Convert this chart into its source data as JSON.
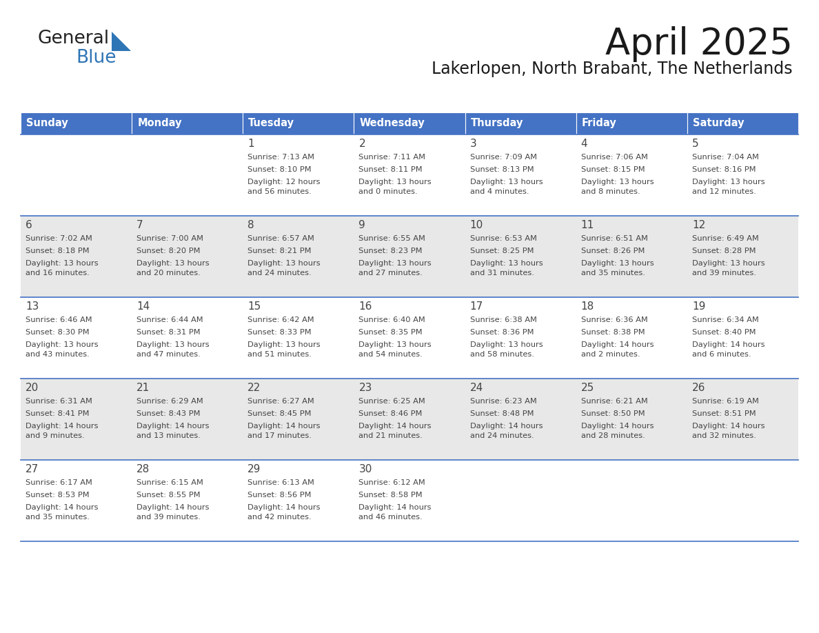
{
  "title": "April 2025",
  "subtitle": "Lakerlopen, North Brabant, The Netherlands",
  "header_color": "#4472C4",
  "header_text_color": "#FFFFFF",
  "bg_color": "#FFFFFF",
  "even_row_color": "#FFFFFF",
  "odd_row_color": "#E8E8E8",
  "border_color": "#4472C4",
  "text_color": "#444444",
  "logo_black": "#222222",
  "logo_blue": "#2E75B6",
  "day_headers": [
    "Sunday",
    "Monday",
    "Tuesday",
    "Wednesday",
    "Thursday",
    "Friday",
    "Saturday"
  ],
  "weeks": [
    [
      {
        "day": "",
        "sunrise": "",
        "sunset": "",
        "daylight": ""
      },
      {
        "day": "",
        "sunrise": "",
        "sunset": "",
        "daylight": ""
      },
      {
        "day": "1",
        "sunrise": "Sunrise: 7:13 AM",
        "sunset": "Sunset: 8:10 PM",
        "daylight": "Daylight: 12 hours\nand 56 minutes."
      },
      {
        "day": "2",
        "sunrise": "Sunrise: 7:11 AM",
        "sunset": "Sunset: 8:11 PM",
        "daylight": "Daylight: 13 hours\nand 0 minutes."
      },
      {
        "day": "3",
        "sunrise": "Sunrise: 7:09 AM",
        "sunset": "Sunset: 8:13 PM",
        "daylight": "Daylight: 13 hours\nand 4 minutes."
      },
      {
        "day": "4",
        "sunrise": "Sunrise: 7:06 AM",
        "sunset": "Sunset: 8:15 PM",
        "daylight": "Daylight: 13 hours\nand 8 minutes."
      },
      {
        "day": "5",
        "sunrise": "Sunrise: 7:04 AM",
        "sunset": "Sunset: 8:16 PM",
        "daylight": "Daylight: 13 hours\nand 12 minutes."
      }
    ],
    [
      {
        "day": "6",
        "sunrise": "Sunrise: 7:02 AM",
        "sunset": "Sunset: 8:18 PM",
        "daylight": "Daylight: 13 hours\nand 16 minutes."
      },
      {
        "day": "7",
        "sunrise": "Sunrise: 7:00 AM",
        "sunset": "Sunset: 8:20 PM",
        "daylight": "Daylight: 13 hours\nand 20 minutes."
      },
      {
        "day": "8",
        "sunrise": "Sunrise: 6:57 AM",
        "sunset": "Sunset: 8:21 PM",
        "daylight": "Daylight: 13 hours\nand 24 minutes."
      },
      {
        "day": "9",
        "sunrise": "Sunrise: 6:55 AM",
        "sunset": "Sunset: 8:23 PM",
        "daylight": "Daylight: 13 hours\nand 27 minutes."
      },
      {
        "day": "10",
        "sunrise": "Sunrise: 6:53 AM",
        "sunset": "Sunset: 8:25 PM",
        "daylight": "Daylight: 13 hours\nand 31 minutes."
      },
      {
        "day": "11",
        "sunrise": "Sunrise: 6:51 AM",
        "sunset": "Sunset: 8:26 PM",
        "daylight": "Daylight: 13 hours\nand 35 minutes."
      },
      {
        "day": "12",
        "sunrise": "Sunrise: 6:49 AM",
        "sunset": "Sunset: 8:28 PM",
        "daylight": "Daylight: 13 hours\nand 39 minutes."
      }
    ],
    [
      {
        "day": "13",
        "sunrise": "Sunrise: 6:46 AM",
        "sunset": "Sunset: 8:30 PM",
        "daylight": "Daylight: 13 hours\nand 43 minutes."
      },
      {
        "day": "14",
        "sunrise": "Sunrise: 6:44 AM",
        "sunset": "Sunset: 8:31 PM",
        "daylight": "Daylight: 13 hours\nand 47 minutes."
      },
      {
        "day": "15",
        "sunrise": "Sunrise: 6:42 AM",
        "sunset": "Sunset: 8:33 PM",
        "daylight": "Daylight: 13 hours\nand 51 minutes."
      },
      {
        "day": "16",
        "sunrise": "Sunrise: 6:40 AM",
        "sunset": "Sunset: 8:35 PM",
        "daylight": "Daylight: 13 hours\nand 54 minutes."
      },
      {
        "day": "17",
        "sunrise": "Sunrise: 6:38 AM",
        "sunset": "Sunset: 8:36 PM",
        "daylight": "Daylight: 13 hours\nand 58 minutes."
      },
      {
        "day": "18",
        "sunrise": "Sunrise: 6:36 AM",
        "sunset": "Sunset: 8:38 PM",
        "daylight": "Daylight: 14 hours\nand 2 minutes."
      },
      {
        "day": "19",
        "sunrise": "Sunrise: 6:34 AM",
        "sunset": "Sunset: 8:40 PM",
        "daylight": "Daylight: 14 hours\nand 6 minutes."
      }
    ],
    [
      {
        "day": "20",
        "sunrise": "Sunrise: 6:31 AM",
        "sunset": "Sunset: 8:41 PM",
        "daylight": "Daylight: 14 hours\nand 9 minutes."
      },
      {
        "day": "21",
        "sunrise": "Sunrise: 6:29 AM",
        "sunset": "Sunset: 8:43 PM",
        "daylight": "Daylight: 14 hours\nand 13 minutes."
      },
      {
        "day": "22",
        "sunrise": "Sunrise: 6:27 AM",
        "sunset": "Sunset: 8:45 PM",
        "daylight": "Daylight: 14 hours\nand 17 minutes."
      },
      {
        "day": "23",
        "sunrise": "Sunrise: 6:25 AM",
        "sunset": "Sunset: 8:46 PM",
        "daylight": "Daylight: 14 hours\nand 21 minutes."
      },
      {
        "day": "24",
        "sunrise": "Sunrise: 6:23 AM",
        "sunset": "Sunset: 8:48 PM",
        "daylight": "Daylight: 14 hours\nand 24 minutes."
      },
      {
        "day": "25",
        "sunrise": "Sunrise: 6:21 AM",
        "sunset": "Sunset: 8:50 PM",
        "daylight": "Daylight: 14 hours\nand 28 minutes."
      },
      {
        "day": "26",
        "sunrise": "Sunrise: 6:19 AM",
        "sunset": "Sunset: 8:51 PM",
        "daylight": "Daylight: 14 hours\nand 32 minutes."
      }
    ],
    [
      {
        "day": "27",
        "sunrise": "Sunrise: 6:17 AM",
        "sunset": "Sunset: 8:53 PM",
        "daylight": "Daylight: 14 hours\nand 35 minutes."
      },
      {
        "day": "28",
        "sunrise": "Sunrise: 6:15 AM",
        "sunset": "Sunset: 8:55 PM",
        "daylight": "Daylight: 14 hours\nand 39 minutes."
      },
      {
        "day": "29",
        "sunrise": "Sunrise: 6:13 AM",
        "sunset": "Sunset: 8:56 PM",
        "daylight": "Daylight: 14 hours\nand 42 minutes."
      },
      {
        "day": "30",
        "sunrise": "Sunrise: 6:12 AM",
        "sunset": "Sunset: 8:58 PM",
        "daylight": "Daylight: 14 hours\nand 46 minutes."
      },
      {
        "day": "",
        "sunrise": "",
        "sunset": "",
        "daylight": ""
      },
      {
        "day": "",
        "sunrise": "",
        "sunset": "",
        "daylight": ""
      },
      {
        "day": "",
        "sunrise": "",
        "sunset": "",
        "daylight": ""
      }
    ]
  ]
}
